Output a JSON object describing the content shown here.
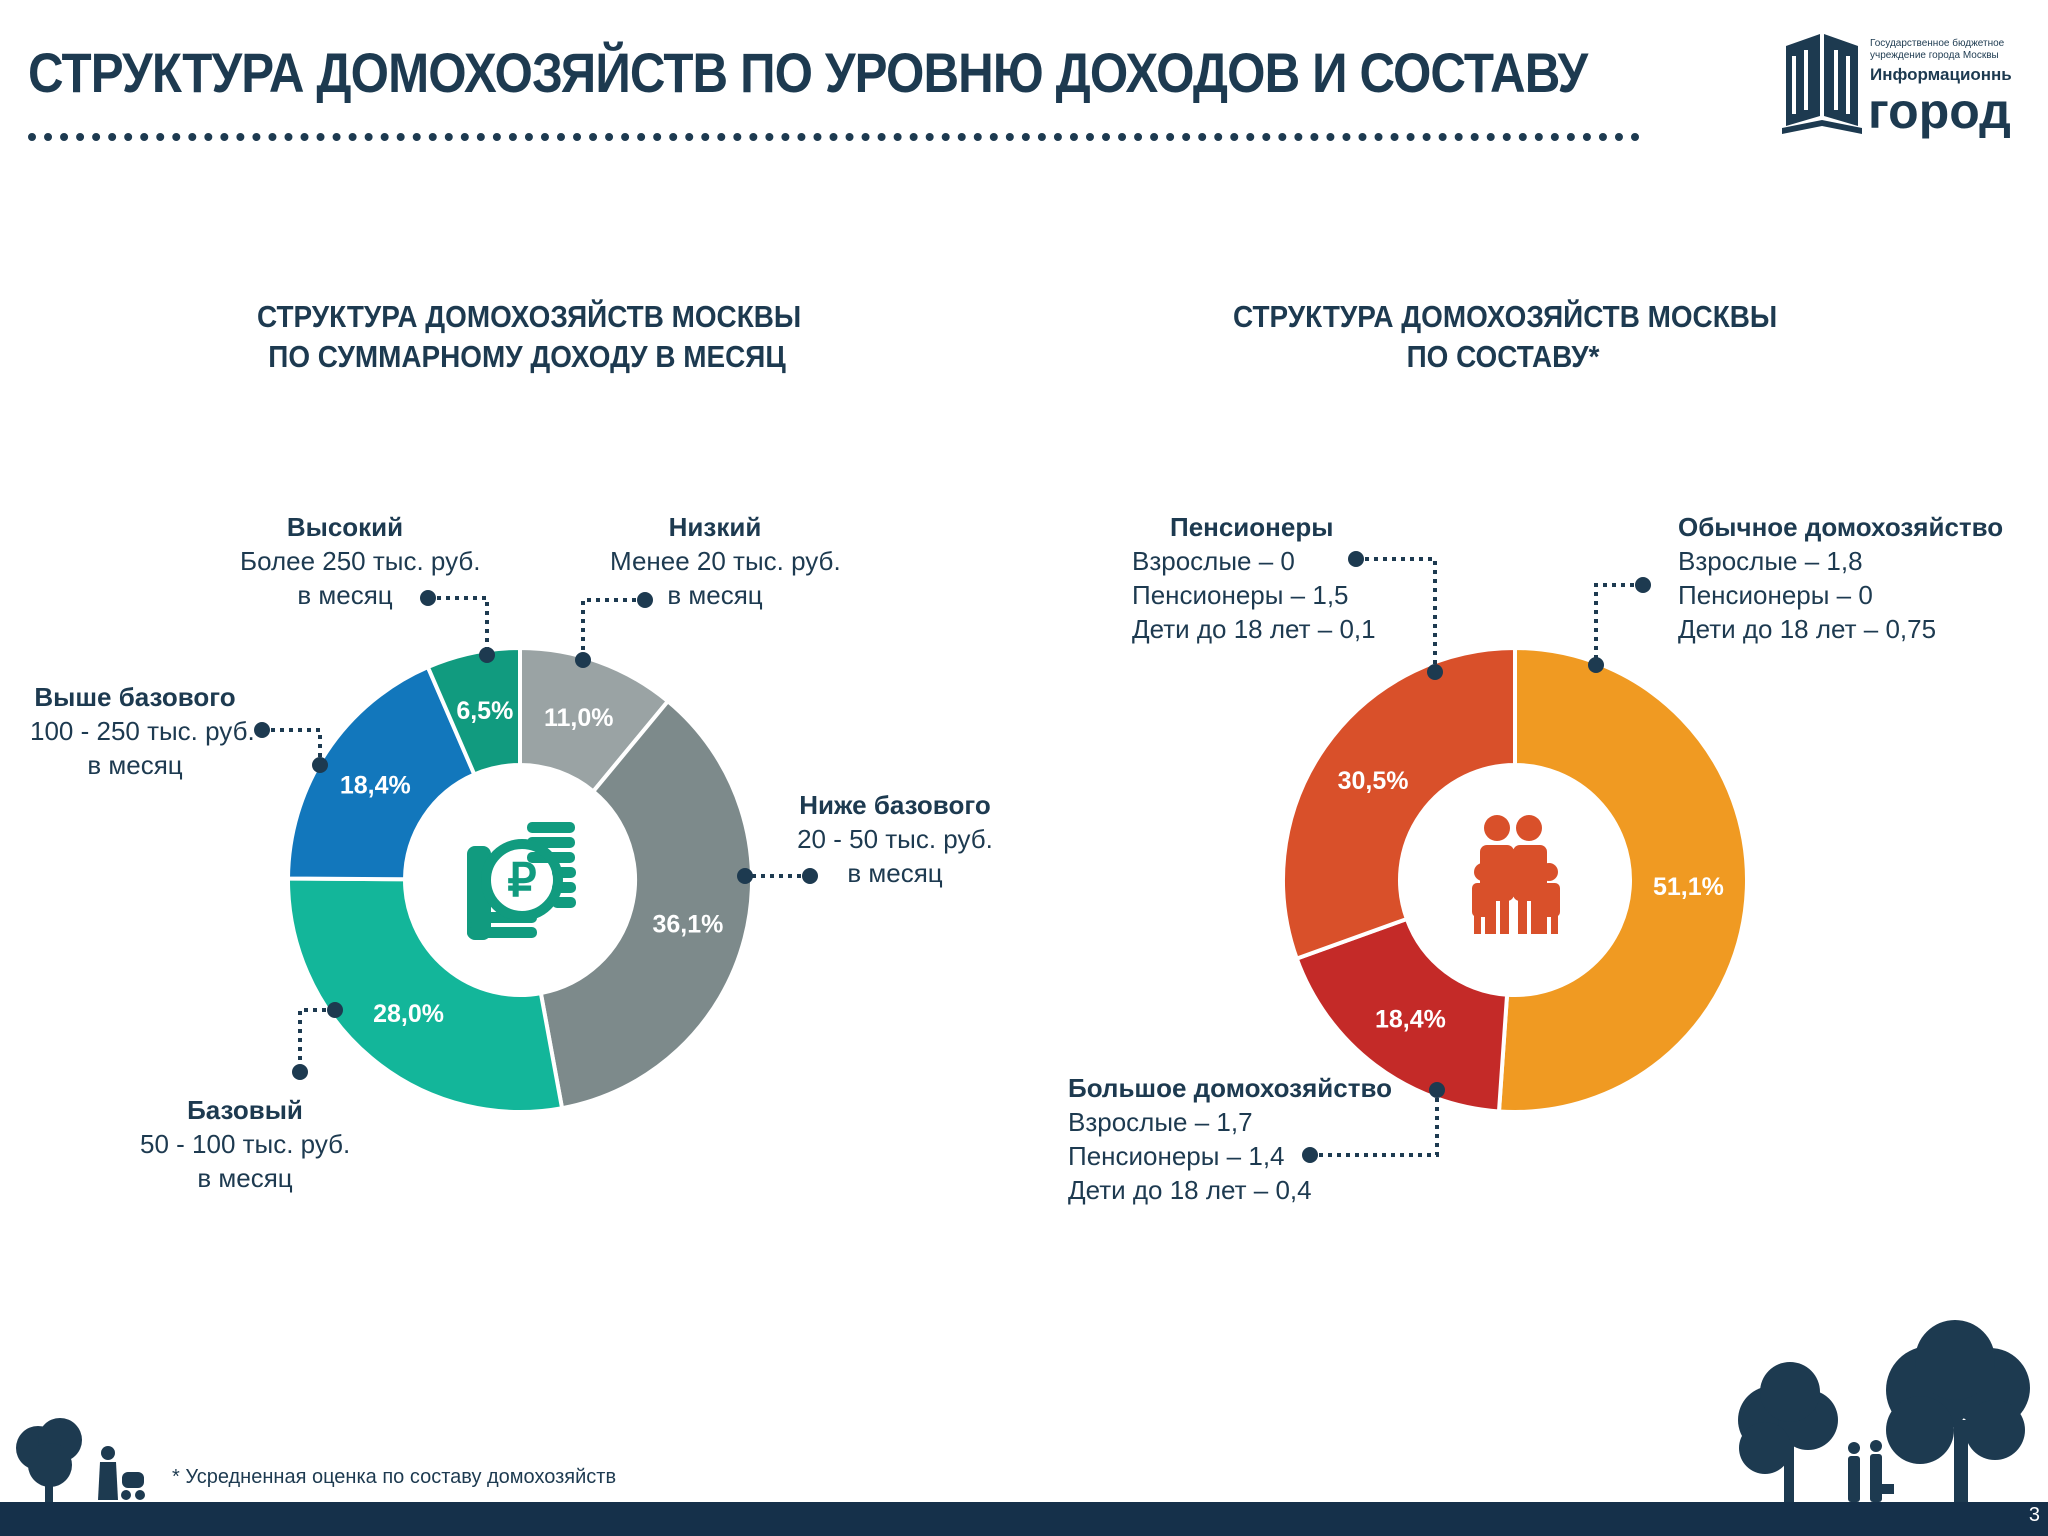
{
  "header": {
    "title": "СТРУКТУРА ДОМОХОЗЯЙСТВ ПО УРОВНЮ ДОХОДОВ И СОСТАВУ",
    "logo": {
      "line1": "Государственное бюджетное",
      "line2": "учреждение города Москвы",
      "name1": "Информационный",
      "name2": "город"
    }
  },
  "chart_data": [
    {
      "type": "pie",
      "title": [
        "СТРУКТУРА ДОМОХОЗЯЙСТВ МОСКВЫ",
        "ПО СУММАРНОМУ ДОХОДУ В МЕСЯЦ"
      ],
      "center_icon": "ruble-coins-icon",
      "slices": [
        {
          "label": "Низкий",
          "desc": [
            "Менее 20 тыс. руб.",
            "в месяц"
          ],
          "value": 11.0,
          "value_label": "11,0%",
          "color": "#9aa3a4"
        },
        {
          "label": "Ниже базового",
          "desc": [
            "20 - 50 тыс. руб.",
            "в месяц"
          ],
          "value": 36.1,
          "value_label": "36,1%",
          "color": "#7d8a8b"
        },
        {
          "label": "Базовый",
          "desc": [
            "50 - 100 тыс. руб.",
            "в месяц"
          ],
          "value": 28.0,
          "value_label": "28,0%",
          "color": "#13b69a"
        },
        {
          "label": "Выше базового",
          "desc": [
            "100 - 250 тыс. руб.",
            "в месяц"
          ],
          "value": 18.4,
          "value_label": "18,4%",
          "color": "#1277bc"
        },
        {
          "label": "Высокий",
          "desc": [
            "Более 250 тыс. руб.",
            "в месяц"
          ],
          "value": 6.5,
          "value_label": "6,5%",
          "color": "#119b7f"
        }
      ]
    },
    {
      "type": "pie",
      "title": [
        "СТРУКТУРА ДОМОХОЗЯЙСТВ МОСКВЫ",
        "ПО СОСТАВУ*"
      ],
      "center_icon": "family-icon",
      "slices": [
        {
          "label": "Обычное домохозяйство",
          "desc": [
            "Взрослые – 1,8",
            "Пенсионеры – 0",
            "Дети до 18 лет – 0,75"
          ],
          "value": 51.1,
          "value_label": "51,1%",
          "color": "#f09a22"
        },
        {
          "label": "Большое домохозяйство",
          "desc": [
            "Взрослые – 1,7",
            "Пенсионеры – 1,4",
            "Дети до 18 лет – 0,4"
          ],
          "value": 18.4,
          "value_label": "18,4%",
          "color": "#c42a28"
        },
        {
          "label": "Пенсионеры",
          "desc": [
            "Взрослые – 0",
            "Пенсионеры – 1,5",
            "Дети до 18 лет – 0,1"
          ],
          "value": 30.5,
          "value_label": "30,5%",
          "color": "#d9502a"
        }
      ]
    }
  ],
  "footnote": "* Усредненная оценка по составу домохозяйств",
  "page_number": "3",
  "colors": {
    "primary": "#1d3a50",
    "footer": "#15304a"
  }
}
